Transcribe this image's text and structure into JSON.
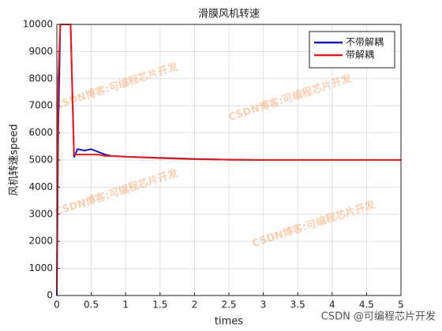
{
  "chart_data": {
    "type": "line",
    "title": "滑膜风机转速",
    "xlabel": "times",
    "ylabel": "风机转速speed",
    "x": [
      0,
      0.02,
      0.05,
      0.15,
      0.2,
      0.25,
      0.3,
      0.4,
      0.5,
      0.6,
      0.7,
      0.8,
      1.0,
      1.5,
      2,
      2.5,
      3,
      4,
      5
    ],
    "series": [
      {
        "name": "不带解耦",
        "color": "#1a1ab4",
        "values": [
          0,
          6000,
          10000,
          10000,
          10000,
          5100,
          5400,
          5350,
          5400,
          5300,
          5200,
          5150,
          5120,
          5080,
          5040,
          5010,
          5000,
          5000,
          5000
        ]
      },
      {
        "name": "带解耦",
        "color": "#e02020",
        "values": [
          200,
          8000,
          10000,
          10000,
          10000,
          5200,
          5200,
          5200,
          5200,
          5200,
          5150,
          5150,
          5120,
          5070,
          5030,
          5010,
          5000,
          5000,
          5000
        ]
      }
    ],
    "xlim": [
      0,
      5
    ],
    "xticks": [
      0,
      0.5,
      1,
      1.5,
      2,
      2.5,
      3,
      3.5,
      4,
      4.5,
      5
    ],
    "ylim": [
      0,
      10000
    ],
    "yticks": [
      0,
      1000,
      2000,
      3000,
      4000,
      5000,
      6000,
      7000,
      8000,
      9000,
      10000
    ],
    "grid": true,
    "legend": "upper right",
    "annotations": [
      "CSDN博客:可编程芯片开发",
      "CSDN博客:可编程芯片开发",
      "CSDN博客:可编程芯片开发",
      "CSDN博客:可编程芯片开发"
    ],
    "credit": "CSDN @可编程芯片开发"
  }
}
